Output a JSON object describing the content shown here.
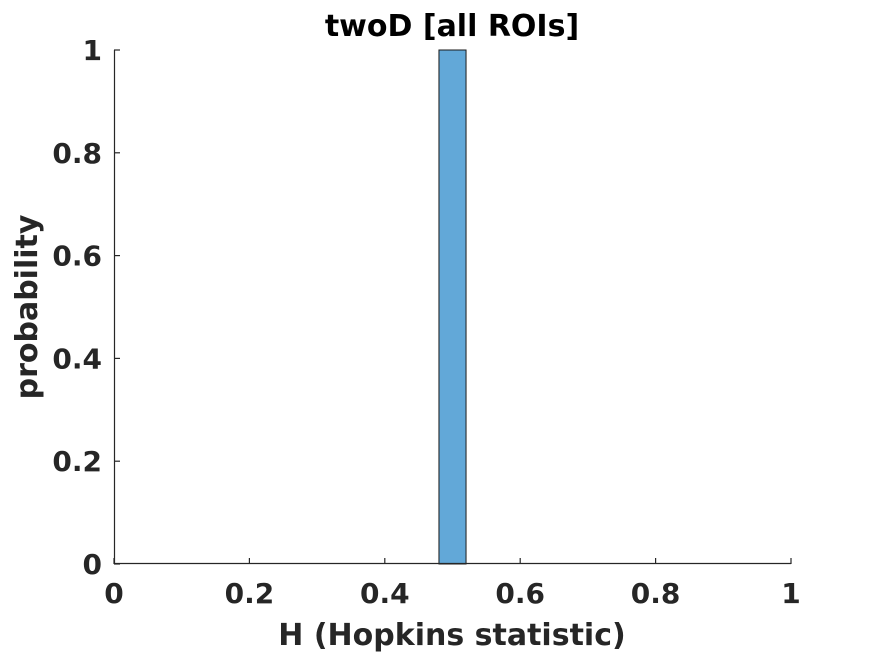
{
  "chart_data": {
    "type": "bar",
    "title": "twoD [all ROIs]",
    "xlabel": "H (Hopkins statistic)",
    "ylabel": "probability",
    "xlim": [
      0,
      1
    ],
    "ylim": [
      0,
      1
    ],
    "xticks": [
      "0",
      "0.2",
      "0.4",
      "0.6",
      "0.8",
      "1"
    ],
    "yticks": [
      "0",
      "0.2",
      "0.4",
      "0.6",
      "0.8",
      "1"
    ],
    "bins": [
      {
        "x_start": 0.48,
        "x_end": 0.52,
        "value": 1
      }
    ],
    "grid": false,
    "colors": {
      "bar_fill": "#62a8d8",
      "bar_edge": "#1a1a1a",
      "axis": "#262626"
    }
  }
}
